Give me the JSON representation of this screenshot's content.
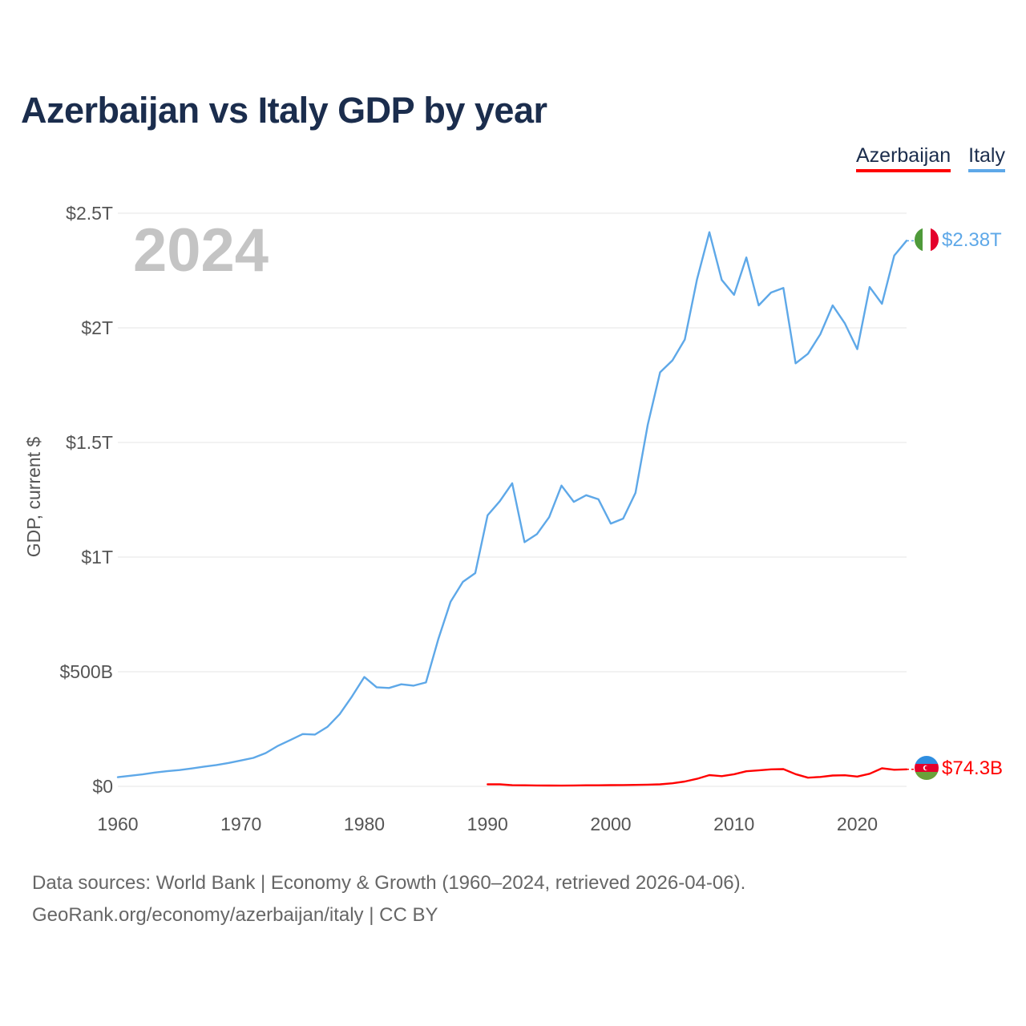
{
  "title": "Azerbaijan vs Italy GDP by year",
  "legend": [
    {
      "label": "Azerbaijan",
      "color": "#ff0000"
    },
    {
      "label": "Italy",
      "color": "#5ea8e8"
    }
  ],
  "year_label": "2024",
  "source": {
    "line1": "Data sources: World Bank | Economy & Growth (1960–2024, retrieved 2026-04-06).",
    "line2": "GeoRank.org/economy/azerbaijan/italy | CC BY"
  },
  "chart_data": {
    "type": "line",
    "title": "Azerbaijan vs Italy GDP by year",
    "xlabel": "",
    "ylabel": "GDP, current $",
    "xlim": [
      1960,
      2024
    ],
    "ylim": [
      0,
      2500
    ],
    "y_unit": "billions of current US$",
    "x_ticks": [
      1960,
      1970,
      1980,
      1990,
      2000,
      2010,
      2020
    ],
    "x_tick_labels": [
      "1960",
      "1970",
      "1980",
      "1990",
      "2000",
      "2010",
      "2020"
    ],
    "y_ticks": [
      0,
      500,
      1000,
      1500,
      2000,
      2500
    ],
    "y_tick_labels": [
      "$0",
      "$500B",
      "$1T",
      "$1.5T",
      "$2T",
      "$2.5T"
    ],
    "grid": true,
    "legend_position": "top-right",
    "series": [
      {
        "name": "Italy",
        "color": "#5ea8e8",
        "end_label": "$2.38T",
        "x": [
          1960,
          1961,
          1962,
          1963,
          1964,
          1965,
          1966,
          1967,
          1968,
          1969,
          1970,
          1971,
          1972,
          1973,
          1974,
          1975,
          1976,
          1977,
          1978,
          1979,
          1980,
          1981,
          1982,
          1983,
          1984,
          1985,
          1986,
          1987,
          1988,
          1989,
          1990,
          1991,
          1992,
          1993,
          1994,
          1995,
          1996,
          1997,
          1998,
          1999,
          2000,
          2001,
          2002,
          2003,
          2004,
          2005,
          2006,
          2007,
          2008,
          2009,
          2010,
          2011,
          2012,
          2013,
          2014,
          2015,
          2016,
          2017,
          2018,
          2019,
          2020,
          2021,
          2022,
          2023,
          2024
        ],
        "values": [
          40,
          46,
          52,
          60,
          66,
          71,
          78,
          86,
          93,
          102,
          113,
          124,
          145,
          177,
          202,
          228,
          226,
          259,
          315,
          392,
          477,
          432,
          429,
          445,
          439,
          453,
          642,
          805,
          892,
          930,
          1182,
          1244,
          1322,
          1065,
          1100,
          1174,
          1312,
          1241,
          1270,
          1252,
          1146,
          1168,
          1280,
          1577,
          1806,
          1858,
          1949,
          2212,
          2417,
          2209,
          2144,
          2307,
          2098,
          2154,
          2174,
          1845,
          1887,
          1972,
          2098,
          2019,
          1907,
          2178,
          2105,
          2315,
          2380
        ]
      },
      {
        "name": "Azerbaijan",
        "color": "#ff0000",
        "end_label": "$74.3B",
        "x": [
          1990,
          1991,
          1992,
          1993,
          1994,
          1995,
          1996,
          1997,
          1998,
          1999,
          2000,
          2001,
          2002,
          2003,
          2004,
          2005,
          2006,
          2007,
          2008,
          2009,
          2010,
          2011,
          2012,
          2013,
          2014,
          2015,
          2016,
          2017,
          2018,
          2019,
          2020,
          2021,
          2022,
          2023,
          2024
        ],
        "values": [
          8.9,
          8.8,
          5.0,
          4.5,
          4.0,
          3.4,
          3.2,
          4.0,
          4.5,
          4.6,
          5.3,
          5.7,
          6.2,
          7.3,
          8.7,
          13.2,
          21.0,
          33.0,
          48.9,
          44.3,
          52.9,
          65.9,
          69.7,
          74.2,
          75.2,
          53.1,
          37.9,
          40.9,
          47.1,
          48.2,
          42.7,
          54.8,
          78.7,
          72.4,
          74.3
        ]
      }
    ]
  }
}
